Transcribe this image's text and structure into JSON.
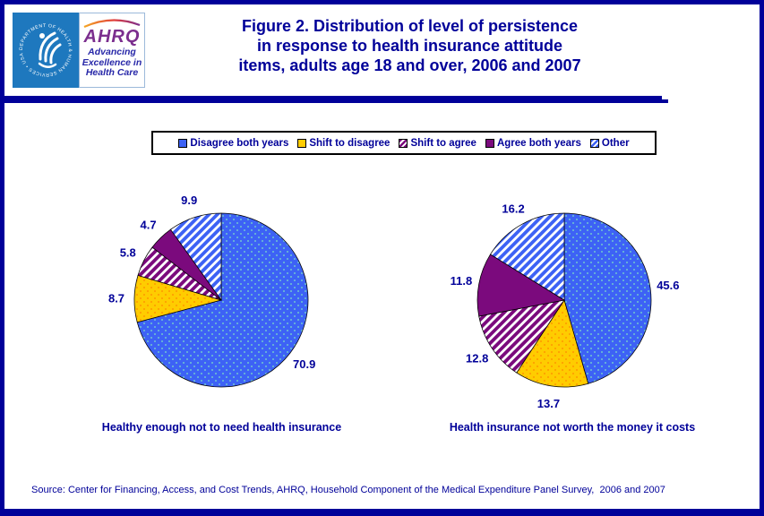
{
  "header": {
    "title_text": "Figure 2. Distribution of level of persistence\nin response to health insurance attitude\nitems, adults age 18 and over, 2006 and 2007",
    "logo": {
      "hhs_ring_text": "DEPARTMENT OF HEALTH & HUMAN SERVICES • USA",
      "ahrq_acronym": "AHRQ",
      "ahrq_tagline": "Advancing\nExcellence in\nHealth Care"
    }
  },
  "legend": {
    "items": [
      {
        "label": "Disagree both years",
        "swatch": "solid-blue-dotted",
        "icon": "blue-dotted-swatch-icon"
      },
      {
        "label": "Shift to disagree",
        "swatch": "solid-yellow-dotted",
        "icon": "yellow-dotted-swatch-icon"
      },
      {
        "label": "Shift to agree",
        "swatch": "hatch-purple",
        "icon": "purple-hatch-swatch-icon"
      },
      {
        "label": "Agree both years",
        "swatch": "solid-purple",
        "icon": "purple-swatch-icon"
      },
      {
        "label": "Other",
        "swatch": "hatch-blue",
        "icon": "blue-hatch-swatch-icon"
      }
    ]
  },
  "chart_data": [
    {
      "type": "pie",
      "title": "Healthy enough not to need health insurance",
      "categories": [
        "Disagree both years",
        "Shift to disagree",
        "Shift to agree",
        "Agree both years",
        "Other"
      ],
      "values": [
        70.9,
        8.7,
        5.8,
        4.7,
        9.9
      ],
      "start_angle_deg": 0,
      "direction": "clockwise",
      "label_format": "value",
      "legend_position": "top-center-shared"
    },
    {
      "type": "pie",
      "title": "Health insurance not worth the money it costs",
      "categories": [
        "Disagree both years",
        "Shift to disagree",
        "Shift to agree",
        "Agree both years",
        "Other"
      ],
      "values": [
        45.6,
        13.7,
        12.8,
        11.8,
        16.2
      ],
      "start_angle_deg": 0,
      "direction": "clockwise",
      "label_format": "value",
      "legend_position": "top-center-shared"
    }
  ],
  "colors": {
    "navy": "#000099",
    "blue": "#3D62F5",
    "blue_dot": "#7EE4C3",
    "yellow": "#FFCC00",
    "yellow_dot": "#FF8800",
    "purple": "#7B0A7D",
    "hatch_background": "#FFFFFF",
    "hhs_blue": "#1E78BE",
    "ahrq_purple": "#7B2E8E",
    "tagline_blue": "#2727A8"
  },
  "source_note": "Source: Center for Financing, Access, and Cost Trends, AHRQ, Household Component of the Medical Expenditure Panel Survey,  2006 and 2007"
}
